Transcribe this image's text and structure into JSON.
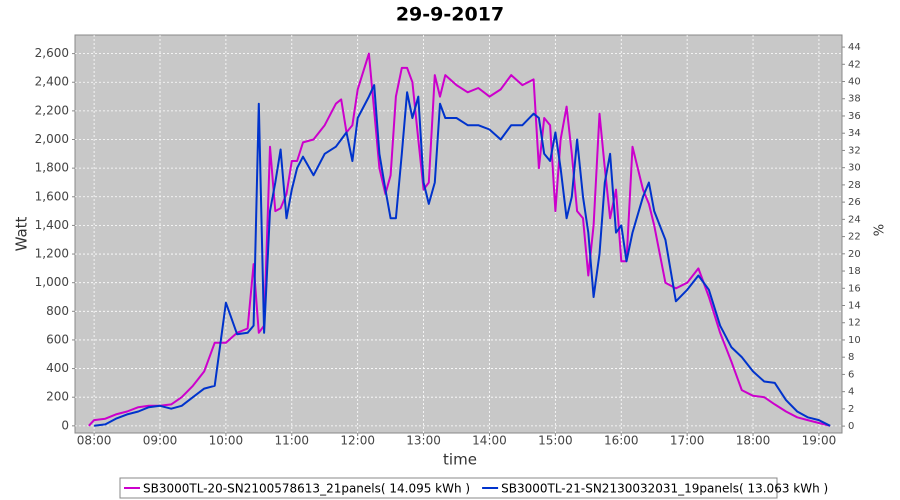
{
  "chart_data": {
    "type": "line",
    "title": "29-9-2017",
    "xlabel": "time",
    "ylabel": "Watt",
    "y2label": "%",
    "x": [
      7.92,
      8.0,
      8.17,
      8.33,
      8.5,
      8.67,
      8.83,
      9.0,
      9.17,
      9.33,
      9.5,
      9.67,
      9.83,
      10.0,
      10.17,
      10.33,
      10.42,
      10.5,
      10.58,
      10.67,
      10.75,
      10.83,
      10.92,
      11.0,
      11.08,
      11.17,
      11.33,
      11.5,
      11.67,
      11.75,
      11.83,
      11.92,
      12.0,
      12.17,
      12.25,
      12.33,
      12.42,
      12.5,
      12.58,
      12.67,
      12.75,
      12.83,
      12.92,
      13.0,
      13.08,
      13.17,
      13.25,
      13.33,
      13.5,
      13.67,
      13.83,
      14.0,
      14.17,
      14.33,
      14.5,
      14.67,
      14.75,
      14.83,
      14.92,
      15.0,
      15.08,
      15.17,
      15.25,
      15.33,
      15.42,
      15.5,
      15.58,
      15.67,
      15.75,
      15.83,
      15.92,
      16.0,
      16.08,
      16.17,
      16.33,
      16.42,
      16.5,
      16.67,
      16.83,
      17.0,
      17.17,
      17.33,
      17.5,
      17.67,
      17.83,
      18.0,
      18.17,
      18.33,
      18.5,
      18.67,
      18.83,
      19.0,
      19.17
    ],
    "series": [
      {
        "name": "SB3000TL-20-SN2100578613_21panels( 14.095 kWh )",
        "color": "#cc00cc",
        "values": [
          0,
          40,
          50,
          80,
          100,
          130,
          140,
          140,
          150,
          200,
          280,
          380,
          580,
          580,
          650,
          680,
          1130,
          650,
          700,
          1950,
          1500,
          1520,
          1620,
          1850,
          1850,
          1980,
          2000,
          2100,
          2250,
          2280,
          2050,
          2100,
          2350,
          2600,
          2200,
          1800,
          1620,
          1750,
          2300,
          2500,
          2500,
          2400,
          2000,
          1650,
          1700,
          2450,
          2300,
          2450,
          2380,
          2330,
          2360,
          2300,
          2350,
          2450,
          2380,
          2420,
          1800,
          2150,
          2100,
          1500,
          2000,
          2230,
          1900,
          1500,
          1450,
          1050,
          1400,
          2180,
          1800,
          1450,
          1650,
          1150,
          1150,
          1950,
          1650,
          1550,
          1400,
          1000,
          960,
          1000,
          1100,
          900,
          650,
          450,
          250,
          210,
          200,
          150,
          100,
          60,
          40,
          20,
          0
        ]
      },
      {
        "name": "SB3000TL-21-SN2130032031_19panels( 13.063 kWh )",
        "color": "#0033cc",
        "values": [
          null,
          0,
          10,
          50,
          80,
          100,
          130,
          140,
          120,
          140,
          200,
          260,
          280,
          860,
          640,
          650,
          700,
          2250,
          650,
          1500,
          1700,
          1930,
          1450,
          1650,
          1800,
          1880,
          1750,
          1900,
          1950,
          2000,
          2050,
          1850,
          2150,
          2300,
          2380,
          1900,
          1650,
          1450,
          1450,
          1900,
          2330,
          2150,
          2300,
          1700,
          1550,
          1700,
          2250,
          2150,
          2150,
          2100,
          2100,
          2070,
          2000,
          2100,
          2100,
          2180,
          2150,
          1900,
          1850,
          2050,
          1800,
          1450,
          1600,
          2000,
          1600,
          1350,
          900,
          1200,
          1700,
          1900,
          1350,
          1400,
          1150,
          1350,
          1600,
          1700,
          1500,
          1300,
          870,
          950,
          1050,
          950,
          700,
          550,
          480,
          380,
          310,
          300,
          180,
          100,
          60,
          40,
          0
        ]
      }
    ],
    "xlim": [
      7.71,
      19.35
    ],
    "xticks": [
      {
        "value": 8,
        "label": "08:00"
      },
      {
        "value": 9,
        "label": "09:00"
      },
      {
        "value": 10,
        "label": "10:00"
      },
      {
        "value": 11,
        "label": "11:00"
      },
      {
        "value": 12,
        "label": "12:00"
      },
      {
        "value": 13,
        "label": "13:00"
      },
      {
        "value": 14,
        "label": "14:00"
      },
      {
        "value": 15,
        "label": "15:00"
      },
      {
        "value": 16,
        "label": "16:00"
      },
      {
        "value": 17,
        "label": "17:00"
      },
      {
        "value": 18,
        "label": "18:00"
      },
      {
        "value": 19,
        "label": "19:00"
      }
    ],
    "ylim": [
      -50,
      2730
    ],
    "yticks": [
      0,
      200,
      400,
      600,
      800,
      {
        "value": 1000,
        "label": "1,000"
      },
      {
        "value": 1200,
        "label": "1,200"
      },
      {
        "value": 1400,
        "label": "1,400"
      },
      {
        "value": 1600,
        "label": "1,600"
      },
      {
        "value": 1800,
        "label": "1,800"
      },
      {
        "value": 2000,
        "label": "2,000"
      },
      {
        "value": 2200,
        "label": "2,200"
      },
      {
        "value": 2400,
        "label": "2,400"
      },
      {
        "value": 2600,
        "label": "2,600"
      }
    ],
    "y2lim": [
      -0.8,
      45.4
    ],
    "y2ticks": [
      0,
      2,
      4,
      6,
      8,
      10,
      12,
      14,
      16,
      18,
      20,
      22,
      24,
      26,
      28,
      30,
      32,
      34,
      36,
      38,
      40,
      42,
      44
    ],
    "grid": true
  }
}
